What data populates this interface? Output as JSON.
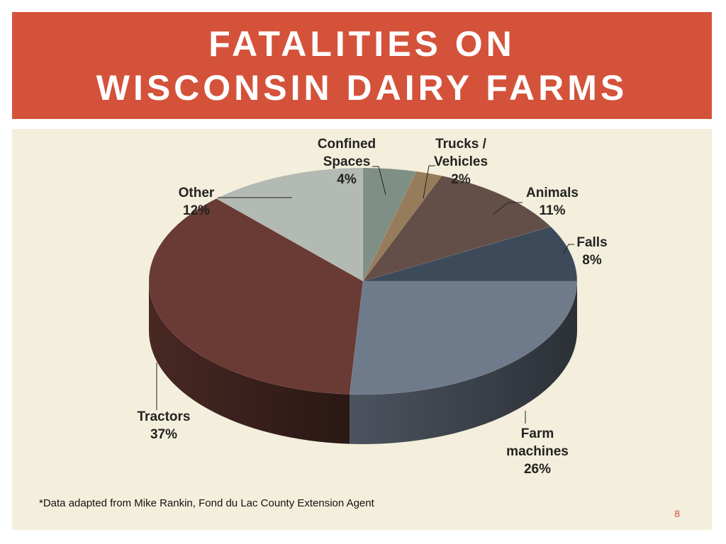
{
  "slide": {
    "title_line1": "FATALITIES ON",
    "title_line2": "WISCONSIN DAIRY FARMS",
    "footnote": "*Data adapted from Mike Rankin, Fond du Lac County Extension Agent",
    "page_number": "8"
  },
  "colors": {
    "title_bar": "#d4523a",
    "content_bg": "#f3efdc"
  },
  "chart_data": {
    "type": "pie",
    "style": "3d",
    "title": "",
    "slices": [
      {
        "label_lines": [
          "Confined",
          "Spaces"
        ],
        "value": 4,
        "pct_label": "4%",
        "color": "#7f8f86"
      },
      {
        "label_lines": [
          "Trucks /",
          "Vehicles"
        ],
        "value": 2,
        "pct_label": "2%",
        "color": "#977c5b"
      },
      {
        "label_lines": [
          "Animals"
        ],
        "value": 11,
        "pct_label": "11%",
        "color": "#634f47"
      },
      {
        "label_lines": [
          "Falls"
        ],
        "value": 8,
        "pct_label": "8%",
        "color": "#3d4a5a"
      },
      {
        "label_lines": [
          "Farm",
          "machines"
        ],
        "value": 26,
        "pct_label": "26%",
        "color": "#6f7a8b"
      },
      {
        "label_lines": [
          "Tractors"
        ],
        "value": 37,
        "pct_label": "37%",
        "color": "#6a3a34"
      },
      {
        "label_lines": [
          "Other"
        ],
        "value": 12,
        "pct_label": "12%",
        "color": "#b3b9b3"
      }
    ]
  }
}
